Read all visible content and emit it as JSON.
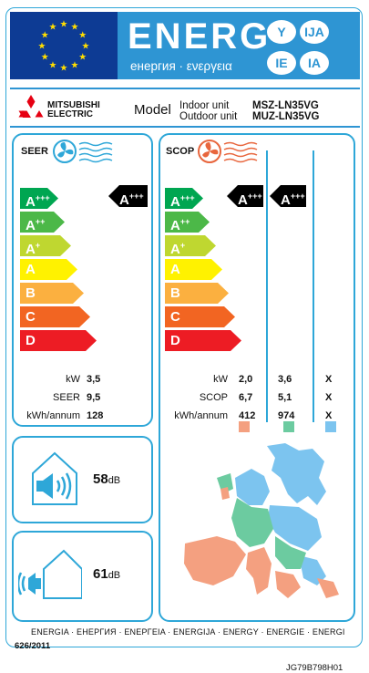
{
  "header": {
    "energy_word": "ENERG",
    "energy_sub": "енергия · ενεργεια",
    "lang_badges": [
      "Y",
      "IJA",
      "IE",
      "IA"
    ]
  },
  "brand": {
    "line1": "MITSUBISHI",
    "line2": "ELECTRIC"
  },
  "model": {
    "label": "Model",
    "indoor_label": "Indoor unit",
    "outdoor_label": "Outdoor unit",
    "indoor_value": "MSZ-LN35VG",
    "outdoor_value": "MUZ-LN35VG"
  },
  "scale": {
    "classes": [
      "A",
      "A",
      "A",
      "A",
      "B",
      "C",
      "D"
    ],
    "sups": [
      "+++",
      "++",
      "+",
      "",
      "",
      "",
      ""
    ],
    "colors": [
      "#00a651",
      "#4cb848",
      "#bfd730",
      "#fff200",
      "#fbb040",
      "#f26522",
      "#ed1c24"
    ]
  },
  "seer": {
    "title": "SEER",
    "rating_class": "A",
    "rating_sup": "+++",
    "rows": [
      {
        "label": "kW",
        "value": "3,5"
      },
      {
        "label": "SEER",
        "value": "9,5"
      },
      {
        "label": "kWh/annum",
        "value": "128"
      }
    ]
  },
  "scop": {
    "title": "SCOP",
    "ratings": [
      {
        "class": "A",
        "sup": "+++"
      },
      {
        "class": "A",
        "sup": "+++"
      }
    ],
    "rows": [
      {
        "label": "kW",
        "values": [
          "2,0",
          "3,6",
          "X"
        ]
      },
      {
        "label": "SCOP",
        "values": [
          "6,7",
          "5,1",
          "X"
        ]
      },
      {
        "label": "kWh/annum",
        "values": [
          "412",
          "974",
          "X"
        ]
      }
    ],
    "zone_colors": [
      "#f4a080",
      "#6ccba0",
      "#7cc4ef"
    ]
  },
  "noise": {
    "indoor_value": "58",
    "outdoor_value": "61",
    "unit": "dB"
  },
  "footer": {
    "languages": "ENERGIA · ЕНЕРГИЯ · ΕΝΕΡΓΕΙΑ · ENERGIJA · ENERGY · ENERGIE · ENERGI",
    "regulation": "626/2011",
    "code": "JG79B798H01"
  }
}
